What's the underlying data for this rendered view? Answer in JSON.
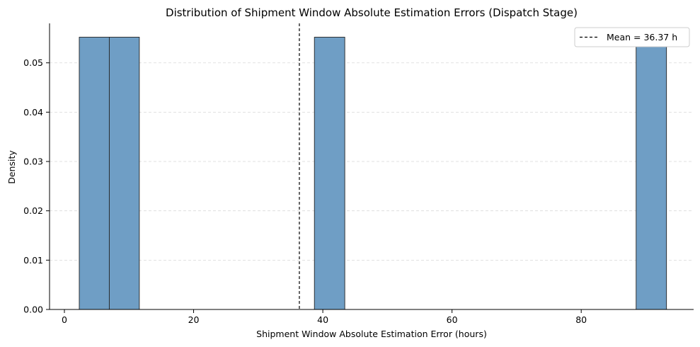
{
  "chart_data": {
    "type": "bar",
    "subtype": "histogram",
    "title": "Distribution of Shipment Window Absolute Estimation Errors (Dispatch Stage)",
    "xlabel": "Shipment Window Absolute Estimation Error (hours)",
    "ylabel": "Density",
    "xlim": [
      -2.3,
      97.4
    ],
    "ylim": [
      0,
      0.058
    ],
    "xticks": [
      0,
      20,
      40,
      60,
      80
    ],
    "yticks": [
      0.0,
      0.01,
      0.02,
      0.03,
      0.04,
      0.05
    ],
    "ytick_labels": [
      "0.00",
      "0.01",
      "0.02",
      "0.03",
      "0.04",
      "0.05"
    ],
    "bins": [
      {
        "x0": 2.3,
        "x1": 6.95,
        "density": 0.0552
      },
      {
        "x0": 6.95,
        "x1": 11.6,
        "density": 0.0552
      },
      {
        "x0": 38.7,
        "x1": 43.4,
        "density": 0.0552
      },
      {
        "x0": 88.5,
        "x1": 93.2,
        "density": 0.0552
      }
    ],
    "mean_line": {
      "value": 36.37,
      "label": "Mean = 36.37 h"
    },
    "grid": "y-dashed",
    "legend_position": "top-right",
    "colors": {
      "bar_fill": "#6f9ec5",
      "bar_edge": "#222222",
      "mean_line": "#000000",
      "grid": "#d9d9d9"
    }
  }
}
